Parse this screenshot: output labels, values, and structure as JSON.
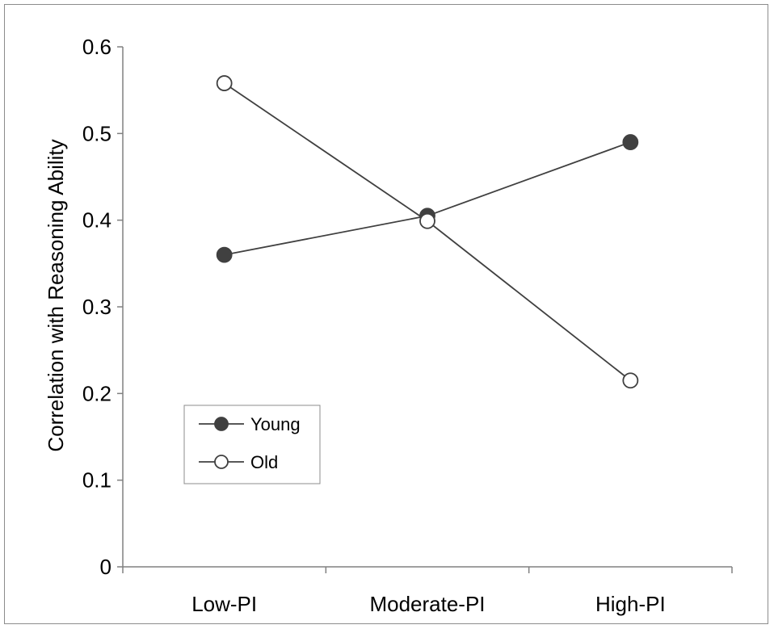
{
  "chart_data": {
    "type": "line",
    "categories": [
      "Low-PI",
      "Moderate-PI",
      "High-PI"
    ],
    "series": [
      {
        "name": "Young",
        "values": [
          0.36,
          0.405,
          0.49
        ],
        "marker": "filled-circle",
        "color": "#404040"
      },
      {
        "name": "Old",
        "values": [
          0.558,
          0.399,
          0.215
        ],
        "marker": "open-circle",
        "color": "#404040"
      }
    ],
    "ylabel": "Correlation with Reasoning Ability",
    "xlabel": "",
    "title": "",
    "ylim": [
      0,
      0.6
    ],
    "yticks": [
      0,
      0.1,
      0.2,
      0.3,
      0.4,
      0.5,
      0.6
    ],
    "ytick_labels": [
      "0",
      "0.1",
      "0.2",
      "0.3",
      "0.4",
      "0.5",
      "0.6"
    ],
    "grid": false,
    "legend_position": "lower-left"
  }
}
